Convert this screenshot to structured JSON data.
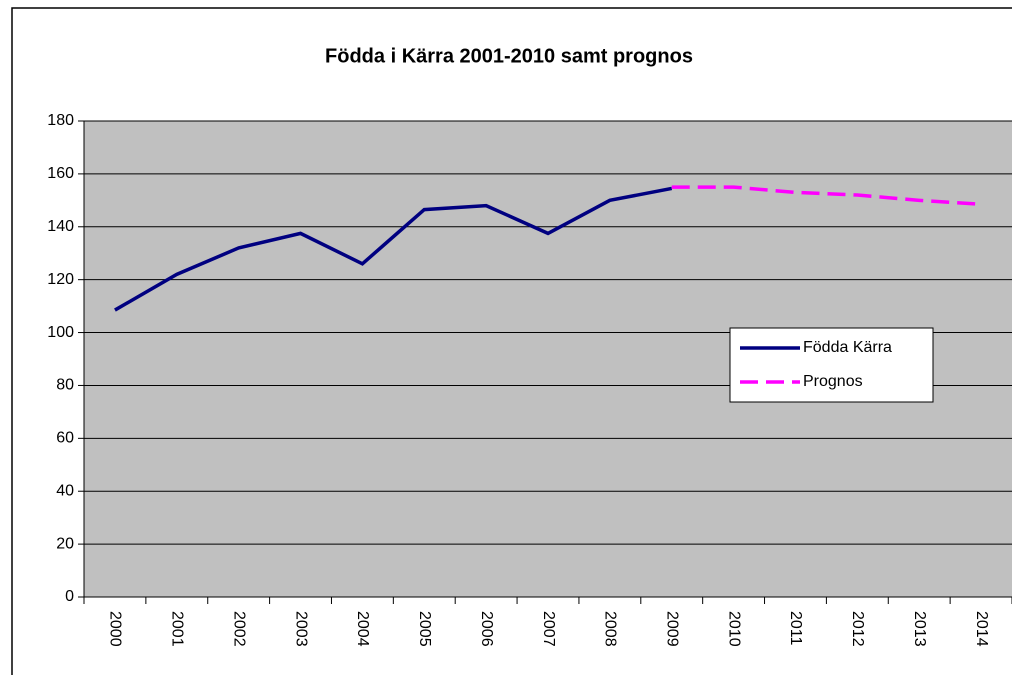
{
  "chart_data": {
    "type": "line",
    "title": "Födda i Kärra 2001-2010 samt prognos",
    "categories": [
      "2000",
      "2001",
      "2002",
      "2003",
      "2004",
      "2005",
      "2006",
      "2007",
      "2008",
      "2009",
      "2010",
      "2011",
      "2012",
      "2013",
      "2014"
    ],
    "series": [
      {
        "name": "Födda Kärra",
        "color": "#000080",
        "dashed": false,
        "values": [
          108.5,
          122,
          132,
          137.5,
          126,
          146.5,
          148,
          137.5,
          150,
          154.5,
          null,
          null,
          null,
          null,
          null
        ]
      },
      {
        "name": "Prognos",
        "color": "#ff00ff",
        "dashed": true,
        "values": [
          null,
          null,
          null,
          null,
          null,
          null,
          null,
          null,
          null,
          155,
          155,
          153,
          152,
          150,
          148.5
        ]
      }
    ],
    "ylim": [
      0,
      180
    ],
    "yticks": [
      0,
      20,
      40,
      60,
      80,
      100,
      120,
      140,
      160,
      180
    ],
    "grid": true,
    "plot_background": "#c0c0c0",
    "legend_position": "right"
  }
}
